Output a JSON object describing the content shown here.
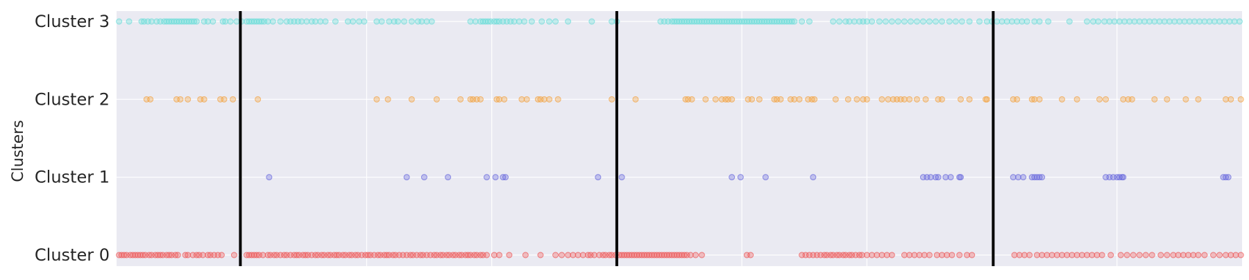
{
  "chart_data": {
    "type": "scatter",
    "title": "",
    "xlabel": "",
    "ylabel": "Clusters",
    "y_categories": [
      "Cluster 0",
      "Cluster 1",
      "Cluster 2",
      "Cluster 3"
    ],
    "xlim": [
      0,
      900
    ],
    "x_ticks_shown": false,
    "grid": true,
    "grid_x_positions": [
      100,
      200,
      300,
      400,
      500,
      600,
      700,
      800
    ],
    "vertical_lines": [
      99,
      400,
      701
    ],
    "colors": {
      "background": "#eaeaf2",
      "grid": "#ffffff",
      "vertical_line": "#000000",
      "series": [
        "#ee5555",
        "#6666dd",
        "#f4a340",
        "#66ddd8"
      ]
    },
    "series": [
      {
        "cluster": 0,
        "x": [
          2,
          4,
          6,
          8,
          11,
          13,
          15,
          17,
          19,
          21,
          23,
          26,
          28,
          31,
          33,
          35,
          37,
          40,
          42,
          44,
          47,
          49,
          55,
          57,
          61,
          64,
          66,
          69,
          73,
          75,
          78,
          81,
          84,
          94,
          104,
          106,
          108,
          110,
          112,
          114,
          117,
          121,
          123,
          126,
          128,
          131,
          134,
          136,
          139,
          142,
          144,
          146,
          149,
          151,
          153,
          156,
          159,
          161,
          164,
          166,
          169,
          171,
          174,
          176,
          178,
          181,
          183,
          186,
          188,
          191,
          193,
          196,
          199,
          201,
          203,
          206,
          209,
          211,
          214,
          216,
          218,
          221,
          223,
          226,
          229,
          232,
          235,
          237,
          240,
          243,
          245,
          248,
          251,
          254,
          256,
          259,
          261,
          264,
          266,
          269,
          271,
          274,
          276,
          279,
          281,
          283,
          286,
          288,
          291,
          293,
          296,
          302,
          306,
          314,
          327,
          339,
          351,
          356,
          361,
          365,
          369,
          373,
          377,
          379,
          382,
          386,
          389,
          391,
          394,
          396,
          399,
          402,
          404,
          406,
          408,
          410,
          412,
          414,
          416,
          418,
          420,
          422,
          424,
          426,
          428,
          430,
          432,
          434,
          436,
          438,
          440,
          442,
          444,
          446,
          448,
          450,
          452,
          454,
          456,
          459,
          463,
          468,
          504,
          507,
          548,
          551,
          554,
          557,
          560,
          563,
          566,
          568,
          571,
          573,
          576,
          578,
          581,
          583,
          586,
          588,
          591,
          594,
          596,
          600,
          604,
          608,
          612,
          616,
          620,
          630,
          634,
          638,
          642,
          646,
          650,
          656,
          660,
          664,
          668,
          674,
          680,
          684,
          718,
          722,
          726,
          730,
          736,
          740,
          744,
          748,
          752,
          756,
          760,
          764,
          768,
          772,
          776,
          780,
          784,
          788,
          795,
          803,
          808,
          813,
          818,
          823,
          828,
          835,
          840,
          845,
          849,
          853,
          857,
          861,
          865,
          870,
          877,
          882,
          887,
          891,
          895,
          899
        ]
      },
      {
        "cluster": 1,
        "x": [
          122,
          232,
          246,
          265,
          296,
          303,
          309,
          311,
          385,
          404,
          492,
          499,
          519,
          557,
          645,
          648,
          651,
          655,
          657,
          663,
          667,
          674,
          675,
          717,
          721,
          725,
          732,
          734,
          736,
          738,
          740,
          791,
          794,
          797,
          800,
          802,
          804,
          805,
          885,
          887,
          889
        ]
      },
      {
        "cluster": 2,
        "x": [
          24,
          27,
          48,
          51,
          57,
          67,
          70,
          83,
          86,
          93,
          113,
          208,
          217,
          236,
          256,
          275,
          283,
          285,
          288,
          291,
          304,
          306,
          310,
          324,
          328,
          337,
          339,
          342,
          346,
          353,
          396,
          415,
          455,
          457,
          460,
          471,
          479,
          484,
          487,
          489,
          492,
          505,
          508,
          514,
          526,
          528,
          531,
          539,
          542,
          546,
          553,
          556,
          558,
          575,
          585,
          592,
          597,
          600,
          612,
          617,
          621,
          624,
          627,
          630,
          634,
          640,
          647,
          657,
          660,
          675,
          682,
          695,
          696,
          717,
          720,
          732,
          734,
          738,
          756,
          768,
          786,
          791,
          805,
          809,
          812,
          830,
          840,
          855,
          865,
          887,
          891,
          899
        ]
      },
      {
        "cluster": 3,
        "x": [
          2,
          10,
          20,
          22,
          25,
          28,
          32,
          35,
          38,
          40,
          42,
          44,
          46,
          48,
          50,
          52,
          54,
          56,
          58,
          60,
          62,
          64,
          70,
          73,
          77,
          85,
          87,
          91,
          96,
          100,
          104,
          106,
          108,
          110,
          112,
          114,
          116,
          118,
          121,
          125,
          131,
          136,
          139,
          142,
          145,
          148,
          152,
          156,
          159,
          163,
          167,
          175,
          185,
          189,
          194,
          198,
          208,
          212,
          218,
          222,
          225,
          230,
          236,
          241,
          244,
          248,
          252,
          283,
          287,
          291,
          293,
          295,
          297,
          299,
          302,
          304,
          306,
          309,
          312,
          315,
          318,
          322,
          326,
          332,
          340,
          346,
          351,
          361,
          380,
          396,
          400,
          435,
          438,
          441,
          444,
          446,
          448,
          450,
          452,
          454,
          456,
          458,
          460,
          462,
          464,
          466,
          468,
          470,
          472,
          474,
          476,
          478,
          480,
          482,
          484,
          486,
          488,
          490,
          492,
          494,
          496,
          498,
          500,
          502,
          504,
          506,
          508,
          510,
          512,
          514,
          516,
          518,
          520,
          522,
          524,
          526,
          528,
          530,
          532,
          534,
          536,
          538,
          540,
          542,
          548,
          554,
          573,
          578,
          583,
          586,
          590,
          594,
          597,
          600,
          604,
          610,
          615,
          620,
          625,
          630,
          635,
          640,
          645,
          650,
          655,
          660,
          666,
          671,
          676,
          682,
          690,
          696,
          700,
          704,
          708,
          712,
          716,
          720,
          724,
          728,
          734,
          738,
          745,
          762,
          776,
          781,
          785,
          790,
          794,
          798,
          802,
          806,
          810,
          814,
          818,
          822,
          826,
          830,
          834,
          838,
          842,
          846,
          850,
          854,
          858,
          862,
          866,
          870,
          874,
          878,
          882,
          886,
          890,
          894,
          898
        ]
      }
    ]
  }
}
